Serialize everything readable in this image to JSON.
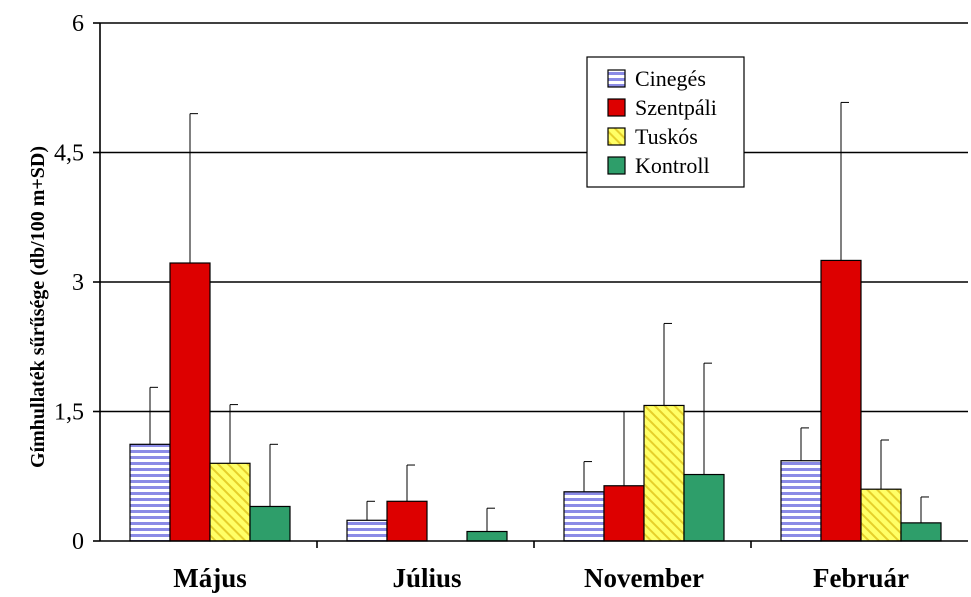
{
  "chart_data": {
    "type": "bar",
    "title": "",
    "xlabel": "",
    "ylabel": "Gímhullaték sűrűsége (db/100 m+SD)",
    "ylim": [
      0,
      6
    ],
    "yticks": [
      0,
      1.5,
      3,
      4.5,
      6
    ],
    "ytick_labels": [
      "0",
      "1,5",
      "3",
      "4,5",
      "6"
    ],
    "grid": true,
    "legend_position": "top-right",
    "categories": [
      "Május",
      "Július",
      "November",
      "Február"
    ],
    "series": [
      {
        "name": "Cinegés",
        "color": "#8b8be6",
        "pattern": "horizontal-stripes",
        "values": [
          1.12,
          0.24,
          0.57,
          0.93
        ],
        "sd": [
          0.66,
          0.22,
          0.35,
          0.38
        ]
      },
      {
        "name": "Szentpáli",
        "color": "#dd0000",
        "pattern": "solid",
        "values": [
          3.22,
          0.46,
          0.64,
          3.25
        ],
        "sd": [
          1.73,
          0.42,
          0.86,
          1.83
        ]
      },
      {
        "name": "Tuskós",
        "color": "#ffff66",
        "pattern": "diagonal-stripes",
        "values": [
          0.9,
          0.0,
          1.57,
          0.6
        ],
        "sd": [
          0.68,
          0.0,
          0.95,
          0.57
        ]
      },
      {
        "name": "Kontroll",
        "color": "#2e9e6a",
        "pattern": "solid",
        "values": [
          0.4,
          0.11,
          0.77,
          0.21
        ],
        "sd": [
          0.72,
          0.27,
          1.29,
          0.3
        ]
      }
    ]
  }
}
